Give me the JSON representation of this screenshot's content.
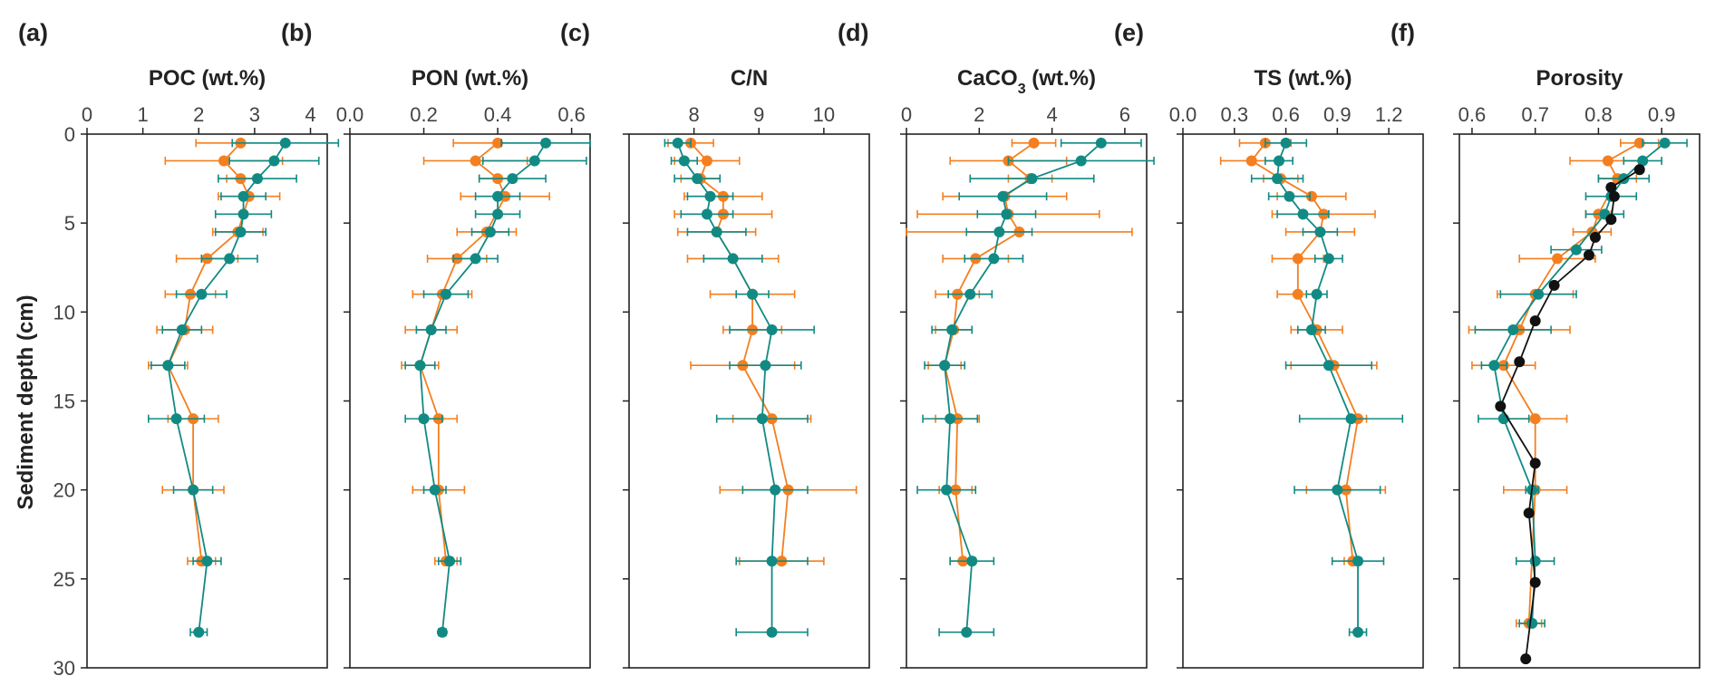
{
  "figure": {
    "ylabel": "Sediment depth (cm)",
    "yticks": [
      0,
      5,
      10,
      15,
      20,
      25,
      30
    ],
    "ylim": [
      0,
      30
    ],
    "series_colors": {
      "orange": "#F47F20",
      "teal": "#128A84",
      "black": "#111111"
    }
  },
  "chart_data": [
    {
      "type": "scatter",
      "panel": "(a)",
      "title": "POC (wt.%)",
      "xlim": [
        0,
        4.3
      ],
      "xticks": [
        0,
        1,
        2,
        3,
        4
      ],
      "xtick_labels": [
        "0",
        "1",
        "2",
        "3",
        "4"
      ],
      "ylabel": "Sediment depth (cm)",
      "series": [
        {
          "name": "orange",
          "color": "#F47F20",
          "depth": [
            0.5,
            1.5,
            2.5,
            3.5,
            5.5,
            7,
            9,
            11,
            13,
            16,
            20,
            24
          ],
          "value": [
            2.75,
            2.45,
            2.75,
            2.9,
            2.7,
            2.15,
            1.85,
            1.75,
            1.45,
            1.9,
            1.9,
            2.05
          ],
          "err": [
            0.8,
            1.05,
            0.25,
            0.55,
            0.45,
            0.55,
            0.45,
            0.5,
            0.35,
            0.45,
            0.55,
            0.25
          ]
        },
        {
          "name": "teal",
          "color": "#128A84",
          "depth": [
            0.5,
            1.5,
            2.5,
            3.5,
            4.5,
            5.5,
            7,
            9,
            11,
            13,
            16,
            20,
            24,
            28
          ],
          "value": [
            3.55,
            3.35,
            3.05,
            2.8,
            2.8,
            2.75,
            2.55,
            2.05,
            1.7,
            1.45,
            1.6,
            1.9,
            2.15,
            2.0
          ],
          "err": [
            0.95,
            0.8,
            0.7,
            0.4,
            0.5,
            0.45,
            0.5,
            0.45,
            0.35,
            0.3,
            0.5,
            0.35,
            0.25,
            0.15
          ]
        }
      ]
    },
    {
      "type": "scatter",
      "panel": "(b)",
      "title": "PON (wt.%)",
      "xlim": [
        0,
        0.65
      ],
      "xticks": [
        0,
        0.2,
        0.4,
        0.6
      ],
      "xtick_labels": [
        "0.0",
        "0.2",
        "0.4",
        "0.6"
      ],
      "series": [
        {
          "name": "orange",
          "color": "#F47F20",
          "depth": [
            0.5,
            1.5,
            2.5,
            3.5,
            5.5,
            7,
            9,
            11,
            13,
            16,
            20,
            24
          ],
          "value": [
            0.4,
            0.34,
            0.4,
            0.42,
            0.37,
            0.29,
            0.25,
            0.22,
            0.19,
            0.24,
            0.24,
            0.26
          ],
          "err": [
            0.12,
            0.14,
            0.05,
            0.12,
            0.08,
            0.08,
            0.08,
            0.07,
            0.05,
            0.05,
            0.07,
            0.03
          ]
        },
        {
          "name": "teal",
          "color": "#128A84",
          "depth": [
            0.5,
            1.5,
            2.5,
            3.5,
            4.5,
            5.5,
            7,
            9,
            11,
            13,
            16,
            20,
            24,
            28
          ],
          "value": [
            0.53,
            0.5,
            0.44,
            0.4,
            0.4,
            0.38,
            0.34,
            0.26,
            0.22,
            0.19,
            0.2,
            0.23,
            0.27,
            0.25
          ],
          "err": [
            0.12,
            0.14,
            0.09,
            0.06,
            0.06,
            0.05,
            0.06,
            0.06,
            0.04,
            0.04,
            0.05,
            0.03,
            0.03,
            0.01
          ]
        }
      ]
    },
    {
      "type": "scatter",
      "panel": "(c)",
      "title": "C/N",
      "xlim": [
        7.0,
        10.7
      ],
      "xticks": [
        8,
        9,
        10
      ],
      "xtick_labels": [
        "8",
        "9",
        "10"
      ],
      "series": [
        {
          "name": "orange",
          "color": "#F47F20",
          "depth": [
            0.5,
            1.5,
            2.5,
            3.5,
            4.5,
            5.5,
            7,
            9,
            11,
            13,
            16,
            20,
            24
          ],
          "value": [
            7.95,
            8.2,
            8.1,
            8.45,
            8.45,
            8.35,
            8.6,
            8.9,
            8.9,
            8.75,
            9.2,
            9.45,
            9.35
          ],
          "err": [
            0.35,
            0.5,
            0.3,
            0.6,
            0.75,
            0.6,
            0.7,
            0.65,
            0.45,
            0.8,
            0.6,
            1.05,
            0.65
          ]
        },
        {
          "name": "teal",
          "color": "#128A84",
          "depth": [
            0.5,
            1.5,
            2.5,
            3.5,
            4.5,
            5.5,
            7,
            9,
            11,
            13,
            16,
            20,
            24,
            28
          ],
          "value": [
            7.75,
            7.85,
            8.05,
            8.25,
            8.2,
            8.35,
            8.6,
            8.9,
            9.2,
            9.1,
            9.05,
            9.25,
            9.2,
            9.2
          ],
          "err": [
            0.2,
            0.2,
            0.35,
            0.35,
            0.4,
            0.45,
            0.45,
            0.25,
            0.65,
            0.55,
            0.7,
            0.5,
            0.55,
            0.55
          ]
        }
      ]
    },
    {
      "type": "scatter",
      "panel": "(d)",
      "title": "CaCO3 (wt.%)",
      "title_main": "CaCO",
      "title_sub": "3",
      "title_rest": " (wt.%)",
      "xlim": [
        0,
        6.6
      ],
      "xticks": [
        0,
        2,
        4,
        6
      ],
      "xtick_labels": [
        "0",
        "2",
        "4",
        "6"
      ],
      "series": [
        {
          "name": "orange",
          "color": "#F47F20",
          "depth": [
            0.5,
            1.5,
            2.5,
            3.5,
            4.5,
            5.5,
            7,
            9,
            11,
            13,
            16,
            20,
            24
          ],
          "value": [
            3.5,
            2.8,
            3.4,
            2.7,
            2.8,
            3.1,
            1.9,
            1.4,
            1.3,
            1.05,
            1.4,
            1.35,
            1.55
          ],
          "err": [
            0.6,
            1.6,
            0.6,
            1.7,
            2.5,
            3.1,
            0.9,
            0.6,
            0.5,
            0.45,
            0.6,
            0.45,
            0.35
          ]
        },
        {
          "name": "teal",
          "color": "#128A84",
          "depth": [
            0.5,
            1.5,
            2.5,
            3.5,
            4.5,
            5.5,
            7,
            9,
            11,
            13,
            16,
            20,
            24,
            28
          ],
          "value": [
            5.35,
            4.8,
            3.45,
            2.65,
            2.75,
            2.55,
            2.4,
            1.75,
            1.25,
            1.05,
            1.2,
            1.1,
            1.8,
            1.65
          ],
          "err": [
            1.1,
            2.0,
            1.7,
            1.2,
            0.8,
            0.9,
            0.8,
            0.6,
            0.55,
            0.55,
            0.75,
            0.8,
            0.6,
            0.75
          ]
        }
      ]
    },
    {
      "type": "scatter",
      "panel": "(e)",
      "title": "TS (wt.%)",
      "xlim": [
        0,
        1.4
      ],
      "xticks": [
        0,
        0.3,
        0.6,
        0.9,
        1.2
      ],
      "xtick_labels": [
        "0.0",
        "0.3",
        "0.6",
        "0.9",
        "1.2"
      ],
      "series": [
        {
          "name": "orange",
          "color": "#F47F20",
          "depth": [
            0.5,
            1.5,
            2.5,
            3.5,
            4.5,
            5.5,
            7,
            9,
            11,
            13,
            16,
            20,
            24
          ],
          "value": [
            0.48,
            0.4,
            0.57,
            0.75,
            0.82,
            0.8,
            0.67,
            0.67,
            0.78,
            0.88,
            1.02,
            0.95,
            0.99
          ],
          "err": [
            0.15,
            0.18,
            0.1,
            0.2,
            0.3,
            0.2,
            0.15,
            0.12,
            0.15,
            0.25,
            0.05,
            0.23,
            0.05
          ]
        },
        {
          "name": "teal",
          "color": "#128A84",
          "depth": [
            0.5,
            1.5,
            2.5,
            3.5,
            4.5,
            5.5,
            7,
            9,
            11,
            13,
            16,
            20,
            24,
            28
          ],
          "value": [
            0.6,
            0.56,
            0.55,
            0.62,
            0.7,
            0.8,
            0.85,
            0.78,
            0.75,
            0.85,
            0.98,
            0.9,
            1.02,
            1.02
          ],
          "err": [
            0.12,
            0.08,
            0.15,
            0.12,
            0.15,
            0.1,
            0.08,
            0.06,
            0.08,
            0.25,
            0.3,
            0.25,
            0.15,
            0.05
          ]
        }
      ]
    },
    {
      "type": "scatter",
      "panel": "(f)",
      "title": "Porosity",
      "xlim": [
        0.58,
        0.96
      ],
      "xticks": [
        0.6,
        0.7,
        0.8,
        0.9
      ],
      "xtick_labels": [
        "0.6",
        "0.7",
        "0.8",
        "0.9"
      ],
      "series": [
        {
          "name": "orange",
          "color": "#F47F20",
          "depth": [
            0.5,
            1.5,
            2.5,
            4.5,
            5.5,
            7,
            9,
            11,
            13,
            16,
            20,
            27.5
          ],
          "value": [
            0.865,
            0.815,
            0.83,
            0.8,
            0.79,
            0.735,
            0.7,
            0.675,
            0.65,
            0.7,
            0.7,
            0.69
          ],
          "err": [
            0.03,
            0.06,
            0.03,
            0.02,
            0.03,
            0.06,
            0.06,
            0.08,
            0.05,
            0.05,
            0.05,
            0.02
          ]
        },
        {
          "name": "teal",
          "color": "#128A84",
          "depth": [
            0.5,
            1.5,
            2.5,
            3.5,
            4.5,
            6.5,
            9,
            11,
            13,
            16,
            20,
            24,
            27.5
          ],
          "value": [
            0.905,
            0.87,
            0.84,
            0.82,
            0.81,
            0.765,
            0.705,
            0.665,
            0.635,
            0.65,
            0.695,
            0.7,
            0.695
          ],
          "err": [
            0.035,
            0.03,
            0.04,
            0.04,
            0.03,
            0.04,
            0.06,
            0.06,
            0.02,
            0.04,
            0.01,
            0.03,
            0.02
          ]
        },
        {
          "name": "black",
          "color": "#111111",
          "depth": [
            2,
            3,
            3.5,
            4.8,
            5.8,
            6.8,
            8.5,
            10.5,
            12.8,
            15.3,
            18.5,
            21.3,
            25.2,
            29.5
          ],
          "value": [
            0.865,
            0.82,
            0.825,
            0.82,
            0.795,
            0.785,
            0.73,
            0.7,
            0.675,
            0.645,
            0.7,
            0.69,
            0.7,
            0.685
          ],
          "err": []
        }
      ]
    }
  ]
}
